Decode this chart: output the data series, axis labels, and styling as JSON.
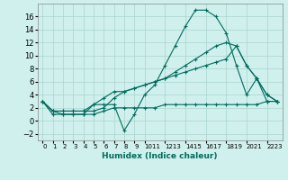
{
  "xlabel": "Humidex (Indice chaleur)",
  "background_color": "#cff0ec",
  "grid_color": "#aad4cf",
  "line_color": "#006b5e",
  "x_values": [
    0,
    1,
    2,
    3,
    4,
    5,
    6,
    7,
    8,
    9,
    10,
    11,
    12,
    13,
    14,
    15,
    16,
    17,
    18,
    19,
    20,
    21,
    22,
    23
  ],
  "series1": [
    3.0,
    1.0,
    1.0,
    1.0,
    1.0,
    2.5,
    2.5,
    2.5,
    -1.5,
    1.0,
    4.0,
    5.5,
    8.5,
    11.5,
    14.5,
    17.0,
    17.0,
    16.0,
    13.5,
    8.5,
    4.0,
    6.5,
    3.0,
    3.0
  ],
  "series2": [
    3.0,
    1.5,
    1.5,
    1.5,
    1.5,
    1.5,
    2.0,
    3.5,
    4.5,
    5.0,
    5.5,
    6.0,
    6.5,
    7.0,
    7.5,
    8.0,
    8.5,
    9.0,
    9.5,
    11.5,
    8.5,
    6.5,
    4.0,
    3.0
  ],
  "series3": [
    3.0,
    1.5,
    1.0,
    1.0,
    1.0,
    1.0,
    1.5,
    2.0,
    2.0,
    2.0,
    2.0,
    2.0,
    2.5,
    2.5,
    2.5,
    2.5,
    2.5,
    2.5,
    2.5,
    2.5,
    2.5,
    2.5,
    3.0,
    3.0
  ],
  "series4": [
    3.0,
    1.5,
    1.5,
    1.5,
    1.5,
    2.5,
    3.5,
    4.5,
    4.5,
    5.0,
    5.5,
    6.0,
    6.5,
    7.5,
    8.5,
    9.5,
    10.5,
    11.5,
    12.0,
    11.5,
    8.5,
    6.5,
    4.0,
    3.0
  ],
  "ylim": [
    -3,
    18
  ],
  "yticks": [
    -2,
    0,
    2,
    4,
    6,
    8,
    10,
    12,
    14,
    16
  ],
  "xlim": [
    -0.5,
    23.5
  ],
  "xtick_labels": [
    "0",
    "1",
    "2",
    "3",
    "4",
    "5",
    "6",
    "7",
    "8",
    "9",
    "1011",
    "1213",
    "1415",
    "1617",
    "1819",
    "2021",
    "2223"
  ]
}
